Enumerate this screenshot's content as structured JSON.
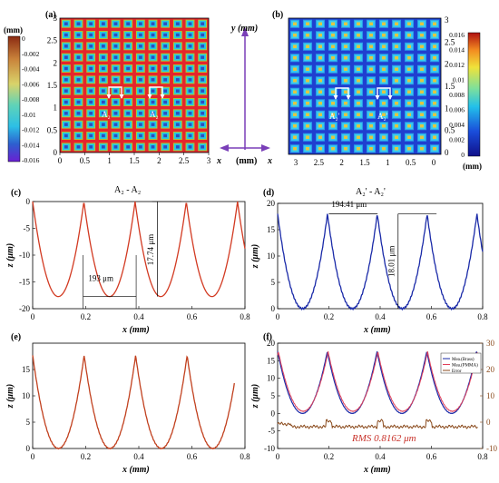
{
  "chart_data": [
    {
      "panel": "(a)",
      "type": "heatmap",
      "description_units": "(mm)",
      "grid": "12x12 array of square pits",
      "x_ticks": [
        "0",
        "0.5",
        "1",
        "1.5",
        "2",
        "2.5",
        "3"
      ],
      "y_ticks": [
        "0",
        "0.5",
        "1",
        "1.5",
        "2",
        "2.5",
        "3"
      ],
      "markers": [
        "A₂",
        "A₂"
      ],
      "colorbar": {
        "title": "(mm)",
        "ticks": [
          "0",
          "-0.002",
          "-0.004",
          "-0.006",
          "-0.008",
          "-0.01",
          "-0.012",
          "-0.014",
          "-0.016"
        ],
        "range": [
          -0.017,
          0
        ]
      },
      "colors": {
        "plateau": "#e5262b",
        "pit": "#23c6e8",
        "pit_center": "#2c4cc0",
        "rim": "#9fd33b"
      }
    },
    {
      "panel": "(b)",
      "type": "heatmap",
      "grid": "12x12 array of square bumps",
      "x_ticks": [
        "3",
        "2.5",
        "2",
        "1.5",
        "1",
        "0.5",
        "0"
      ],
      "y_ticks": [
        "0",
        "0.5",
        "1",
        "1.5",
        "2",
        "2.5",
        "3"
      ],
      "markers": [
        "A₂'",
        "A₂'"
      ],
      "colorbar": {
        "title": "(mm)",
        "ticks": [
          "0",
          "0.002",
          "0.004",
          "0.006",
          "0.008",
          "0.01",
          "0.012",
          "0.014",
          "0.016"
        ],
        "range": [
          0,
          0.017
        ]
      },
      "colors": {
        "base": "#1f3fd0",
        "bump": "#33c7f0",
        "bump_center": "#e4c540"
      }
    },
    {
      "panel": "(c)",
      "type": "line",
      "title": "A₂ - A₂",
      "xlabel": "x (mm)",
      "ylabel": "z (μm)",
      "xlim": [
        0,
        0.8
      ],
      "ylim": [
        -20,
        0
      ],
      "x_ticks": [
        "0",
        "0.2",
        "0.4",
        "0.6",
        "0.8"
      ],
      "y_ticks": [
        "0",
        "-5",
        "-10",
        "-15",
        "-20"
      ],
      "series": [
        {
          "color": "#d23a22",
          "period": 0.193,
          "phase": 0.0,
          "min": -17.74,
          "max": 0
        }
      ],
      "annotations": [
        "193 μm",
        "17.74 μm"
      ]
    },
    {
      "panel": "(d)",
      "type": "line",
      "title": "A₂' - A₂'",
      "xlabel": "x (mm)",
      "ylabel": "z (μm)",
      "xlim": [
        0,
        0.8
      ],
      "ylim": [
        0,
        20
      ],
      "x_ticks": [
        "0",
        "0.2",
        "0.4",
        "0.6",
        "0.8"
      ],
      "y_ticks": [
        "0",
        "5",
        "10",
        "15",
        "20"
      ],
      "series": [
        {
          "color": "#1a2aa8",
          "period": 0.19441,
          "phase": 0.0,
          "min": 0,
          "max": 18.01
        }
      ],
      "annotations": [
        "194.41 μm",
        "18.01 μm"
      ]
    },
    {
      "panel": "(e)",
      "type": "line",
      "xlabel": "x (mm)",
      "ylabel": "z (μm)",
      "xlim": [
        0,
        0.8
      ],
      "ylim": [
        0,
        20
      ],
      "x_ticks": [
        "0",
        "0.2",
        "0.4",
        "0.6",
        "0.8"
      ],
      "y_ticks": [
        "0",
        "5",
        "10",
        "15"
      ],
      "series": [
        {
          "color": "#c1401e",
          "period": 0.194,
          "phase": 0.0,
          "min": 0,
          "max": 17.7
        }
      ]
    },
    {
      "panel": "(f)",
      "type": "line",
      "xlabel": "x (mm)",
      "ylabel": "z (μm)",
      "xlim": [
        0,
        0.8
      ],
      "ylim": [
        -10,
        20
      ],
      "x_ticks": [
        "0",
        "0.2",
        "0.4",
        "0.6",
        "0.8"
      ],
      "y_ticks": [
        "-10",
        "-5",
        "0",
        "5",
        "10",
        "15",
        "20"
      ],
      "y2_ticks": [
        "-10",
        "0",
        "10",
        "20",
        "30"
      ],
      "legend": [
        "Mea.(Brass)",
        "Mea.(PMMA)",
        "Error"
      ],
      "legend_position": "top-right",
      "series": [
        {
          "name": "Mea.(Brass)",
          "color": "#1a2aa8",
          "period": 0.194,
          "min": 0,
          "max": 17.7
        },
        {
          "name": "Mea.(PMMA)",
          "color": "#e0405a",
          "period": 0.194,
          "min": 0.5,
          "max": 17.6
        },
        {
          "name": "Error",
          "color": "#8a4a1c"
        }
      ],
      "annotation": "RMS 0.8162 μm"
    }
  ],
  "labels": {
    "a_panel": "(a)",
    "b_panel": "(b)",
    "c_panel": "(c)",
    "d_panel": "(d)",
    "e_panel": "(e)",
    "f_panel": "(f)",
    "a_unit": "(mm)",
    "b_unit": "(mm)",
    "axis_y": "y (mm)",
    "axis_x_left": "x",
    "axis_x_mid": "(mm)",
    "axis_x_right": "x",
    "c_title": "A₂ - A₂",
    "d_title": "A₂' - A₂'",
    "xlabel": "x (mm)",
    "ylabel": "z (μm)",
    "c_period": "193 μm",
    "c_depth": "17.74 μm",
    "d_period": "194.41 μm",
    "d_height": "18.01 μm",
    "f_rms": "RMS 0.8162 μm",
    "legend_1": "Mea.(Brass)",
    "legend_2": "Mea.(PMMA)",
    "legend_3": "Error",
    "marker_a": "A₂",
    "marker_b": "A₂'"
  }
}
